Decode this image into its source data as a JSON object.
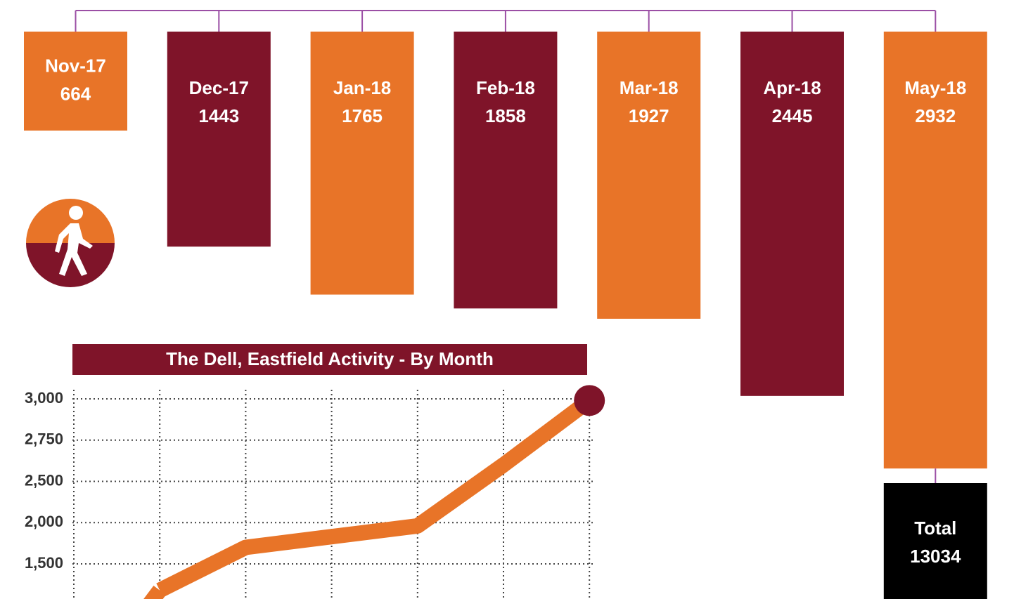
{
  "chart_data": [
    {
      "type": "bar",
      "categories": [
        "Nov-17",
        "Dec-17",
        "Jan-18",
        "Feb-18",
        "Mar-18",
        "Apr-18",
        "May-18"
      ],
      "values": [
        664,
        1443,
        1765,
        1858,
        1927,
        2445,
        2932
      ],
      "colors": [
        "#e87428",
        "#7f1429",
        "#e87428",
        "#7f1429",
        "#e87428",
        "#7f1429",
        "#e87428"
      ],
      "total_label": "Total",
      "total_value": 13034,
      "total_color": "#000000",
      "bracket_color": "#9b4fa5"
    },
    {
      "type": "line",
      "title": "The Dell, Eastfield Activity - By Month",
      "categories": [
        null,
        null,
        null,
        null,
        null,
        null,
        null
      ],
      "values": [
        null,
        1180,
        1700,
        1830,
        1960,
        2600,
        2990
      ],
      "color": "#e87428",
      "marker_color": "#7f1429",
      "title_color": "#7f1429",
      "yticks": [
        {
          "value": 3000,
          "label": "3,000"
        },
        {
          "value": 2750,
          "label": "2,750"
        },
        {
          "value": 2500,
          "label": "2,500"
        },
        {
          "value": 2000,
          "label": "2,000"
        },
        {
          "value": 1500,
          "label": "1,500"
        }
      ],
      "grid": true
    }
  ]
}
